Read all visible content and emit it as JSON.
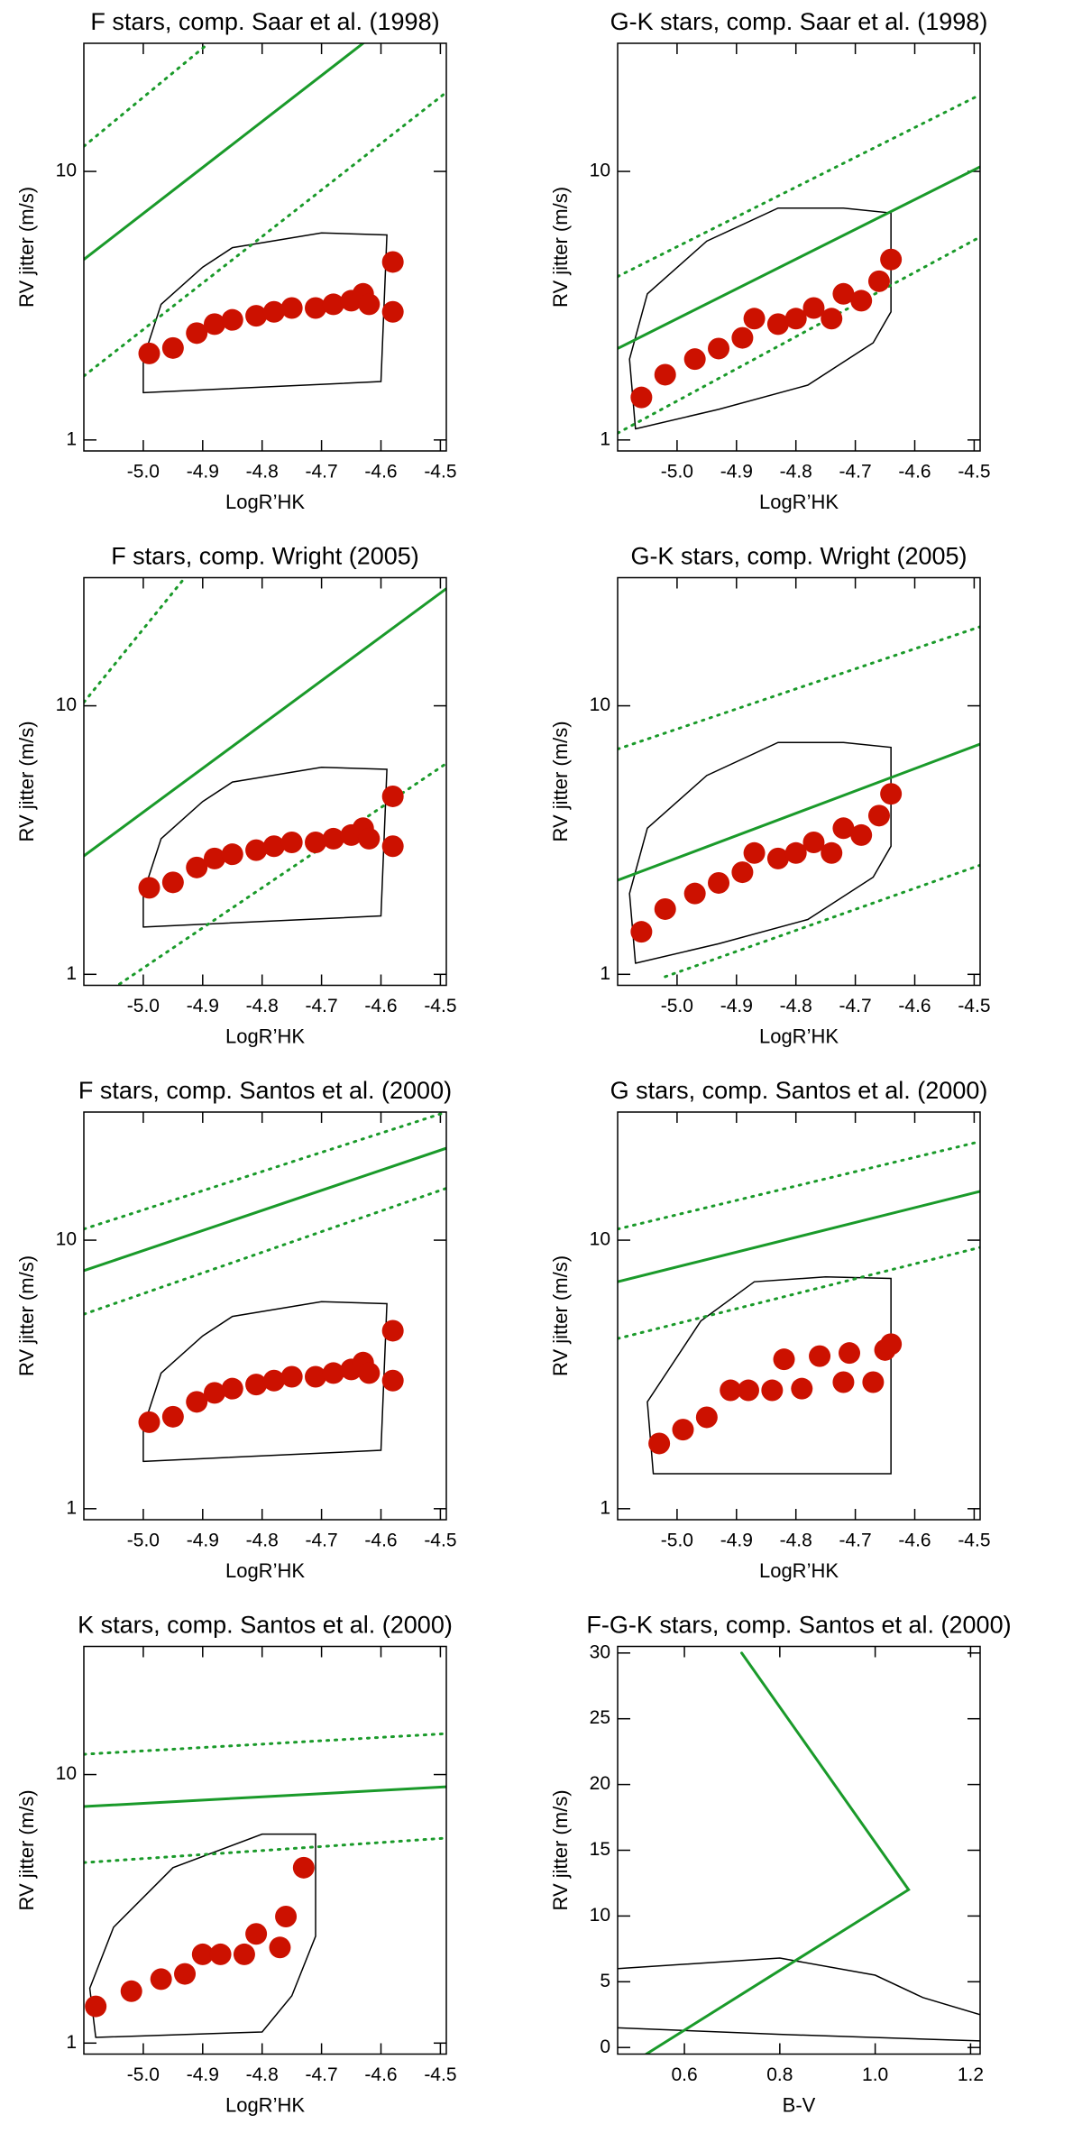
{
  "chart_data": [
    {
      "type": "scatter",
      "title": "F stars, comp. Saar et al. (1998)",
      "xlabel": "LogR’HK",
      "ylabel": "RV jitter (m/s)",
      "xlim": [
        -5.1,
        -4.49
      ],
      "ylim": [
        0.91,
        30
      ],
      "log_y": true,
      "xticks": [
        {
          "value": -5,
          "label": "-5.0"
        },
        -4.9,
        -4.8,
        -4.7,
        -4.6,
        -4.5
      ],
      "yticks": [
        1,
        10
      ],
      "series": [
        {
          "style": "contour",
          "color": "#000000",
          "x": [
            -5.0,
            -4.6,
            -4.59,
            -4.7,
            -4.85,
            -4.9,
            -4.97,
            -5.0,
            -5.0
          ],
          "values": [
            1.5,
            1.65,
            5.8,
            5.9,
            5.2,
            4.4,
            3.2,
            2.0,
            1.5
          ]
        },
        {
          "style": "solid",
          "color": "#1a9a2a",
          "x": [
            -5.1,
            -4.63
          ],
          "values": [
            4.7,
            30
          ]
        },
        {
          "style": "dotted",
          "color": "#1a9a2a",
          "x": [
            -5.1,
            -4.89
          ],
          "values": [
            12.4,
            30
          ]
        },
        {
          "style": "dotted",
          "color": "#1a9a2a",
          "x": [
            -5.1,
            -4.49
          ],
          "values": [
            1.73,
            19.7
          ]
        },
        {
          "style": "markers",
          "color": "#cc1100",
          "x": [
            -4.99,
            -4.95,
            -4.91,
            -4.88,
            -4.85,
            -4.81,
            -4.78,
            -4.75,
            -4.71,
            -4.68,
            -4.65,
            -4.63,
            -4.62,
            -4.58,
            -4.58
          ],
          "values": [
            2.1,
            2.2,
            2.5,
            2.7,
            2.8,
            2.9,
            3.0,
            3.1,
            3.1,
            3.2,
            3.3,
            3.5,
            3.2,
            4.6,
            3.0
          ]
        }
      ]
    },
    {
      "type": "scatter",
      "title": "G-K stars, comp. Saar et al. (1998)",
      "xlabel": "LogR’HK",
      "ylabel": "RV jitter (m/s)",
      "xlim": [
        -5.1,
        -4.49
      ],
      "ylim": [
        0.91,
        30
      ],
      "log_y": true,
      "xticks": [
        {
          "value": -5,
          "label": "-5.0"
        },
        -4.9,
        -4.8,
        -4.7,
        -4.6,
        -4.5
      ],
      "yticks": [
        1,
        10
      ],
      "series": [
        {
          "style": "contour",
          "color": "#000000",
          "x": [
            -5.07,
            -4.93,
            -4.78,
            -4.67,
            -4.64,
            -4.64,
            -4.72,
            -4.83,
            -4.95,
            -5.05,
            -5.08,
            -5.07
          ],
          "values": [
            1.1,
            1.3,
            1.6,
            2.3,
            3.0,
            7.0,
            7.3,
            7.3,
            5.5,
            3.5,
            2.0,
            1.1
          ]
        },
        {
          "style": "solid",
          "color": "#1a9a2a",
          "x": [
            -5.1,
            -4.49
          ],
          "values": [
            2.19,
            10.4
          ]
        },
        {
          "style": "dotted",
          "color": "#1a9a2a",
          "x": [
            -5.1,
            -4.49
          ],
          "values": [
            4.06,
            19.3
          ]
        },
        {
          "style": "dotted",
          "color": "#1a9a2a",
          "x": [
            -5.1,
            -4.49
          ],
          "values": [
            1.06,
            5.7
          ]
        },
        {
          "style": "markers",
          "color": "#cc1100",
          "x": [
            -5.06,
            -5.02,
            -4.97,
            -4.93,
            -4.89,
            -4.87,
            -4.83,
            -4.8,
            -4.77,
            -4.74,
            -4.72,
            -4.69,
            -4.66,
            -4.64
          ],
          "values": [
            1.44,
            1.75,
            2.0,
            2.19,
            2.4,
            2.83,
            2.7,
            2.83,
            3.1,
            2.83,
            3.5,
            3.3,
            3.9,
            4.7
          ]
        }
      ]
    },
    {
      "type": "scatter",
      "title": "F stars, comp. Wright (2005)",
      "xlabel": "LogR’HK",
      "ylabel": "RV jitter (m/s)",
      "xlim": [
        -5.1,
        -4.49
      ],
      "ylim": [
        0.91,
        30
      ],
      "log_y": true,
      "xticks": [
        {
          "value": -5,
          "label": "-5.0"
        },
        -4.9,
        -4.8,
        -4.7,
        -4.6,
        -4.5
      ],
      "yticks": [
        1,
        10
      ],
      "series": [
        {
          "style": "contour",
          "color": "#000000",
          "x": [
            -5.0,
            -4.6,
            -4.59,
            -4.7,
            -4.85,
            -4.9,
            -4.97,
            -5.0,
            -5.0
          ],
          "values": [
            1.5,
            1.65,
            5.8,
            5.9,
            5.2,
            4.4,
            3.2,
            2.0,
            1.5
          ]
        },
        {
          "style": "solid",
          "color": "#1a9a2a",
          "x": [
            -5.1,
            -4.49
          ],
          "values": [
            2.76,
            27.3
          ]
        },
        {
          "style": "dotted",
          "color": "#1a9a2a",
          "x": [
            -5.1,
            -4.93
          ],
          "values": [
            10.3,
            30
          ]
        },
        {
          "style": "dotted",
          "color": "#1a9a2a",
          "x": [
            -5.04,
            -4.49
          ],
          "values": [
            0.92,
            6.1
          ]
        },
        {
          "style": "markers",
          "color": "#cc1100",
          "x": [
            -4.99,
            -4.95,
            -4.91,
            -4.88,
            -4.85,
            -4.81,
            -4.78,
            -4.75,
            -4.71,
            -4.68,
            -4.65,
            -4.63,
            -4.62,
            -4.58,
            -4.58
          ],
          "values": [
            2.1,
            2.2,
            2.5,
            2.7,
            2.8,
            2.9,
            3.0,
            3.1,
            3.1,
            3.2,
            3.3,
            3.5,
            3.2,
            4.6,
            3.0
          ]
        }
      ]
    },
    {
      "type": "scatter",
      "title": "G-K stars, comp. Wright (2005)",
      "xlabel": "LogR’HK",
      "ylabel": "RV jitter (m/s)",
      "xlim": [
        -5.1,
        -4.49
      ],
      "ylim": [
        0.91,
        30
      ],
      "log_y": true,
      "xticks": [
        {
          "value": -5,
          "label": "-5.0"
        },
        -4.9,
        -4.8,
        -4.7,
        -4.6,
        -4.5
      ],
      "yticks": [
        1,
        10
      ],
      "series": [
        {
          "style": "contour",
          "color": "#000000",
          "x": [
            -5.07,
            -4.93,
            -4.78,
            -4.67,
            -4.64,
            -4.64,
            -4.72,
            -4.83,
            -4.95,
            -5.05,
            -5.08,
            -5.07
          ],
          "values": [
            1.1,
            1.3,
            1.6,
            2.3,
            3.0,
            7.0,
            7.3,
            7.3,
            5.5,
            3.5,
            2.0,
            1.1
          ]
        },
        {
          "style": "solid",
          "color": "#1a9a2a",
          "x": [
            -5.1,
            -4.49
          ],
          "values": [
            2.24,
            7.2
          ]
        },
        {
          "style": "dotted",
          "color": "#1a9a2a",
          "x": [
            -5.1,
            -4.49
          ],
          "values": [
            6.9,
            19.7
          ]
        },
        {
          "style": "dotted",
          "color": "#1a9a2a",
          "x": [
            -5.02,
            -4.49
          ],
          "values": [
            0.98,
            2.55
          ]
        },
        {
          "style": "markers",
          "color": "#cc1100",
          "x": [
            -5.06,
            -5.02,
            -4.97,
            -4.93,
            -4.89,
            -4.87,
            -4.83,
            -4.8,
            -4.77,
            -4.74,
            -4.72,
            -4.69,
            -4.66,
            -4.64
          ],
          "values": [
            1.44,
            1.75,
            2.0,
            2.19,
            2.4,
            2.83,
            2.7,
            2.83,
            3.1,
            2.83,
            3.5,
            3.3,
            3.9,
            4.7
          ]
        }
      ]
    },
    {
      "type": "scatter",
      "title": "F stars, comp. Santos et al. (2000)",
      "xlabel": "LogR’HK",
      "ylabel": "RV jitter (m/s)",
      "xlim": [
        -5.1,
        -4.49
      ],
      "ylim": [
        0.91,
        30
      ],
      "log_y": true,
      "xticks": [
        {
          "value": -5,
          "label": "-5.0"
        },
        -4.9,
        -4.8,
        -4.7,
        -4.6,
        -4.5
      ],
      "yticks": [
        1,
        10
      ],
      "series": [
        {
          "style": "contour",
          "color": "#000000",
          "x": [
            -5.0,
            -4.6,
            -4.59,
            -4.7,
            -4.85,
            -4.9,
            -4.97,
            -5.0,
            -5.0
          ],
          "values": [
            1.5,
            1.65,
            5.8,
            5.9,
            5.2,
            4.4,
            3.2,
            2.0,
            1.5
          ]
        },
        {
          "style": "solid",
          "color": "#1a9a2a",
          "x": [
            -5.1,
            -4.49
          ],
          "values": [
            7.7,
            22
          ]
        },
        {
          "style": "dotted",
          "color": "#1a9a2a",
          "x": [
            -5.1,
            -4.49
          ],
          "values": [
            11,
            30
          ]
        },
        {
          "style": "dotted",
          "color": "#1a9a2a",
          "x": [
            -5.1,
            -4.49
          ],
          "values": [
            5.3,
            15.6
          ]
        },
        {
          "style": "markers",
          "color": "#cc1100",
          "x": [
            -4.99,
            -4.95,
            -4.91,
            -4.88,
            -4.85,
            -4.81,
            -4.78,
            -4.75,
            -4.71,
            -4.68,
            -4.65,
            -4.63,
            -4.62,
            -4.58,
            -4.58
          ],
          "values": [
            2.1,
            2.2,
            2.5,
            2.7,
            2.8,
            2.9,
            3.0,
            3.1,
            3.1,
            3.2,
            3.3,
            3.5,
            3.2,
            4.6,
            3.0
          ]
        }
      ]
    },
    {
      "type": "scatter",
      "title": "G stars, comp. Santos et al. (2000)",
      "xlabel": "LogR’HK",
      "ylabel": "RV jitter (m/s)",
      "xlim": [
        -5.1,
        -4.49
      ],
      "ylim": [
        0.91,
        30
      ],
      "log_y": true,
      "xticks": [
        {
          "value": -5,
          "label": "-5.0"
        },
        -4.9,
        -4.8,
        -4.7,
        -4.6,
        -4.5
      ],
      "yticks": [
        1,
        10
      ],
      "series": [
        {
          "style": "contour",
          "color": "#000000",
          "x": [
            -5.04,
            -4.64,
            -4.64,
            -4.75,
            -4.87,
            -4.96,
            -5.05,
            -5.04
          ],
          "values": [
            1.35,
            1.35,
            7.2,
            7.3,
            7.0,
            5.0,
            2.5,
            1.35
          ]
        },
        {
          "style": "solid",
          "color": "#1a9a2a",
          "x": [
            -5.1,
            -4.49
          ],
          "values": [
            7.0,
            15.2
          ]
        },
        {
          "style": "dotted",
          "color": "#1a9a2a",
          "x": [
            -5.1,
            -4.49
          ],
          "values": [
            11,
            23.3
          ]
        },
        {
          "style": "dotted",
          "color": "#1a9a2a",
          "x": [
            -5.1,
            -4.49
          ],
          "values": [
            4.3,
            9.4
          ]
        },
        {
          "style": "markers",
          "color": "#cc1100",
          "x": [
            -5.03,
            -4.99,
            -4.95,
            -4.91,
            -4.88,
            -4.84,
            -4.82,
            -4.79,
            -4.76,
            -4.72,
            -4.71,
            -4.67,
            -4.65,
            -4.64
          ],
          "values": [
            1.75,
            1.97,
            2.19,
            2.76,
            2.76,
            2.76,
            3.6,
            2.8,
            3.7,
            2.96,
            3.8,
            2.96,
            3.9,
            4.1
          ]
        }
      ]
    },
    {
      "type": "scatter",
      "title": "K stars, comp. Santos et al. (2000)",
      "xlabel": "LogR’HK",
      "ylabel": "RV jitter (m/s)",
      "xlim": [
        -5.1,
        -4.49
      ],
      "ylim": [
        0.91,
        30
      ],
      "log_y": true,
      "xticks": [
        {
          "value": -5,
          "label": "-5.0"
        },
        -4.9,
        -4.8,
        -4.7,
        -4.6,
        -4.5
      ],
      "yticks": [
        1,
        10
      ],
      "series": [
        {
          "style": "contour",
          "color": "#000000",
          "x": [
            -5.08,
            -4.8,
            -4.75,
            -4.71,
            -4.71,
            -4.8,
            -4.95,
            -5.05,
            -5.09,
            -5.08
          ],
          "values": [
            1.05,
            1.1,
            1.5,
            2.5,
            6.0,
            6.0,
            4.5,
            2.7,
            1.6,
            1.05
          ]
        },
        {
          "style": "solid",
          "color": "#1a9a2a",
          "x": [
            -5.1,
            -4.49
          ],
          "values": [
            7.6,
            9.0
          ]
        },
        {
          "style": "dotted",
          "color": "#1a9a2a",
          "x": [
            -5.1,
            -4.49
          ],
          "values": [
            11.9,
            14.2
          ]
        },
        {
          "style": "dotted",
          "color": "#1a9a2a",
          "x": [
            -5.1,
            -4.49
          ],
          "values": [
            4.7,
            5.8
          ]
        },
        {
          "style": "markers",
          "color": "#cc1100",
          "x": [
            -5.08,
            -5.02,
            -4.97,
            -4.93,
            -4.9,
            -4.87,
            -4.83,
            -4.81,
            -4.77,
            -4.76,
            -4.73
          ],
          "values": [
            1.37,
            1.56,
            1.73,
            1.81,
            2.14,
            2.14,
            2.14,
            2.55,
            2.27,
            2.96,
            4.5
          ]
        }
      ]
    },
    {
      "type": "scatter",
      "title": "F-G-K stars, comp. Santos et al. (2000)",
      "xlabel": "B-V",
      "ylabel": "RV jitter (m/s)",
      "xlim": [
        0.46,
        1.22
      ],
      "ylim": [
        -0.5,
        30.5
      ],
      "log_y": false,
      "xticks": [
        0.6,
        0.8,
        {
          "value": 1,
          "label": "1.0"
        },
        1.2
      ],
      "yticks": [
        0,
        5,
        10,
        15,
        20,
        25,
        30
      ],
      "series": [
        {
          "style": "contour",
          "color": "#000000",
          "x": [
            0.46,
            0.8,
            1.0,
            1.1,
            1.22
          ],
          "values": [
            6.0,
            6.8,
            5.5,
            3.8,
            2.5
          ]
        },
        {
          "style": "contour",
          "color": "#000000",
          "x": [
            0.46,
            0.8,
            1.22
          ],
          "values": [
            1.5,
            1.0,
            0.5
          ]
        },
        {
          "style": "solid",
          "color": "#1a9a2a",
          "x": [
            0.52,
            1.07,
            0.72
          ],
          "values": [
            -0.5,
            12,
            30
          ]
        }
      ]
    }
  ]
}
